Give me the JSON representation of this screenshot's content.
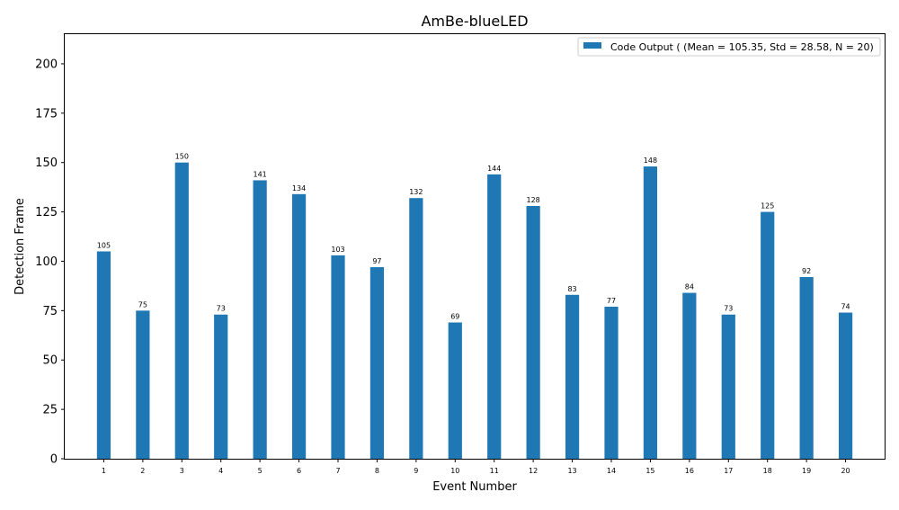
{
  "chart_data": {
    "type": "bar",
    "title": "AmBe-blueLED",
    "xlabel": "Event Number",
    "ylabel": "Detection Frame",
    "categories": [
      "1",
      "2",
      "3",
      "4",
      "5",
      "6",
      "7",
      "8",
      "9",
      "10",
      "11",
      "12",
      "13",
      "14",
      "15",
      "16",
      "17",
      "18",
      "19",
      "20"
    ],
    "series": [
      {
        "name": "Code Output ( (Mean = 105.35, Std = 28.58, N = 20)",
        "values": [
          105,
          75,
          150,
          73,
          141,
          134,
          103,
          97,
          132,
          69,
          144,
          128,
          83,
          77,
          148,
          84,
          73,
          125,
          92,
          74
        ]
      }
    ],
    "ylim": [
      0,
      215
    ],
    "yticks": [
      0,
      25,
      50,
      75,
      100,
      125,
      150,
      175,
      200
    ],
    "xlim": [
      0,
      21
    ],
    "grid": false,
    "legend_position": "top-right",
    "bar_color": "#1f77b4",
    "data_labels": true
  }
}
